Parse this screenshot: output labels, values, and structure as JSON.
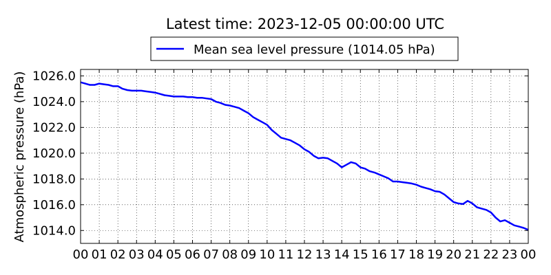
{
  "chart_data": {
    "type": "line",
    "title": "Latest time: 2023-12-05 00:00:00 UTC",
    "ylabel": "Atmospheric pressure (hPa)",
    "xlabel": "",
    "xlim": [
      0,
      24
    ],
    "ylim": [
      1013,
      1026.5
    ],
    "grid": true,
    "legend_position": "top-center",
    "x_tick_values": [
      0,
      1,
      2,
      3,
      4,
      5,
      6,
      7,
      8,
      9,
      10,
      11,
      12,
      13,
      14,
      15,
      16,
      17,
      18,
      19,
      20,
      21,
      22,
      23,
      24
    ],
    "x_tick_labels": [
      "00",
      "01",
      "02",
      "03",
      "04",
      "05",
      "06",
      "07",
      "08",
      "09",
      "10",
      "11",
      "12",
      "13",
      "14",
      "15",
      "16",
      "17",
      "18",
      "19",
      "20",
      "21",
      "22",
      "23",
      "00"
    ],
    "y_tick_values": [
      1014,
      1016,
      1018,
      1020,
      1022,
      1024,
      1026
    ],
    "y_tick_labels": [
      "1014.0",
      "1016.0",
      "1018.0",
      "1020.0",
      "1022.0",
      "1024.0",
      "1026.0"
    ],
    "series": [
      {
        "name": "Mean sea level pressure (1014.05 hPa)",
        "color": "#0000ff",
        "x": [
          0,
          0.25,
          0.5,
          0.75,
          1,
          1.25,
          1.5,
          1.75,
          2,
          2.25,
          2.5,
          2.75,
          3,
          3.25,
          3.5,
          3.75,
          4,
          4.25,
          4.5,
          4.75,
          5,
          5.25,
          5.5,
          5.75,
          6,
          6.25,
          6.5,
          6.75,
          7,
          7.25,
          7.5,
          7.75,
          8,
          8.25,
          8.5,
          8.75,
          9,
          9.25,
          9.5,
          9.75,
          10,
          10.25,
          10.5,
          10.75,
          11,
          11.25,
          11.5,
          11.75,
          12,
          12.25,
          12.5,
          12.75,
          13,
          13.25,
          13.5,
          13.75,
          14,
          14.25,
          14.5,
          14.75,
          15,
          15.25,
          15.5,
          15.75,
          16,
          16.25,
          16.5,
          16.75,
          17,
          17.25,
          17.5,
          17.75,
          18,
          18.25,
          18.5,
          18.75,
          19,
          19.25,
          19.5,
          19.75,
          20,
          20.25,
          20.5,
          20.75,
          21,
          21.25,
          21.5,
          21.75,
          22,
          22.25,
          22.5,
          22.75,
          23,
          23.25,
          23.5,
          23.75,
          24
        ],
        "y": [
          1025.5,
          1025.4,
          1025.3,
          1025.3,
          1025.4,
          1025.35,
          1025.3,
          1025.2,
          1025.2,
          1025.0,
          1024.9,
          1024.85,
          1024.85,
          1024.85,
          1024.8,
          1024.75,
          1024.7,
          1024.6,
          1024.5,
          1024.45,
          1024.4,
          1024.4,
          1024.4,
          1024.35,
          1024.35,
          1024.3,
          1024.3,
          1024.25,
          1024.2,
          1024.0,
          1023.9,
          1023.75,
          1023.7,
          1023.6,
          1023.5,
          1023.3,
          1023.1,
          1022.8,
          1022.6,
          1022.4,
          1022.2,
          1021.8,
          1021.5,
          1021.2,
          1021.1,
          1021.0,
          1020.8,
          1020.6,
          1020.3,
          1020.1,
          1019.8,
          1019.6,
          1019.65,
          1019.6,
          1019.4,
          1019.2,
          1018.9,
          1019.1,
          1019.3,
          1019.2,
          1018.9,
          1018.8,
          1018.6,
          1018.5,
          1018.35,
          1018.2,
          1018.05,
          1017.8,
          1017.8,
          1017.75,
          1017.7,
          1017.65,
          1017.55,
          1017.4,
          1017.3,
          1017.2,
          1017.05,
          1017.0,
          1016.8,
          1016.5,
          1016.2,
          1016.1,
          1016.05,
          1016.3,
          1016.1,
          1015.8,
          1015.7,
          1015.6,
          1015.4,
          1015.0,
          1014.7,
          1014.8,
          1014.6,
          1014.4,
          1014.3,
          1014.2,
          1014.05
        ]
      }
    ]
  }
}
